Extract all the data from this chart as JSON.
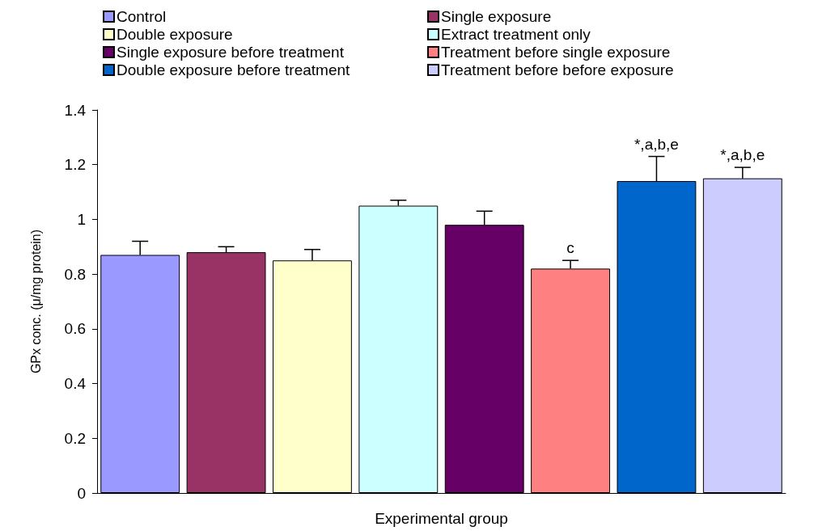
{
  "chart_data": {
    "type": "bar",
    "xlabel": "Experimental group",
    "ylabel": "GPx conc. (μ/mg protein)",
    "categories": [
      null
    ],
    "series": [
      {
        "name": "Control",
        "color": "#9999ff",
        "values": [
          0.87
        ],
        "errors": [
          [
            0.87,
            0.92
          ]
        ]
      },
      {
        "name": "Single exposure",
        "color": "#993366",
        "values": [
          0.88
        ],
        "errors": [
          [
            0.88,
            0.9
          ]
        ]
      },
      {
        "name": "Double exposure",
        "color": "#ffffcc",
        "values": [
          0.85
        ],
        "errors": [
          [
            0.85,
            0.89
          ]
        ]
      },
      {
        "name": "Extract treatment only",
        "color": "#ccffff",
        "values": [
          1.05
        ],
        "errors": [
          [
            1.05,
            1.07
          ]
        ]
      },
      {
        "name": "Single exposure before treatment",
        "color": "#660066",
        "values": [
          0.98
        ],
        "errors": [
          [
            0.98,
            1.03
          ]
        ]
      },
      {
        "name": "Treatment before single exposure",
        "color": "#ff8080",
        "values": [
          0.82
        ],
        "errors": [
          [
            0.82,
            0.85
          ]
        ],
        "value_labels": [
          "c"
        ]
      },
      {
        "name": "Double exposure before treatment",
        "color": "#0066cc",
        "values": [
          1.14
        ],
        "errors": [
          [
            1.14,
            1.23
          ]
        ],
        "value_labels": [
          "*,a,b,e"
        ]
      },
      {
        "name": "Treatment before before exposure",
        "color": "#ccccff",
        "values": [
          1.15
        ],
        "errors": [
          [
            1.15,
            1.19
          ]
        ],
        "value_labels": [
          "*,a,b,e"
        ]
      }
    ],
    "ylim": [
      0,
      1.4
    ],
    "yticks": [
      0,
      0.2,
      0.4,
      0.6,
      0.8,
      1,
      1.2,
      1.4
    ],
    "grid": false,
    "legend": "top"
  }
}
